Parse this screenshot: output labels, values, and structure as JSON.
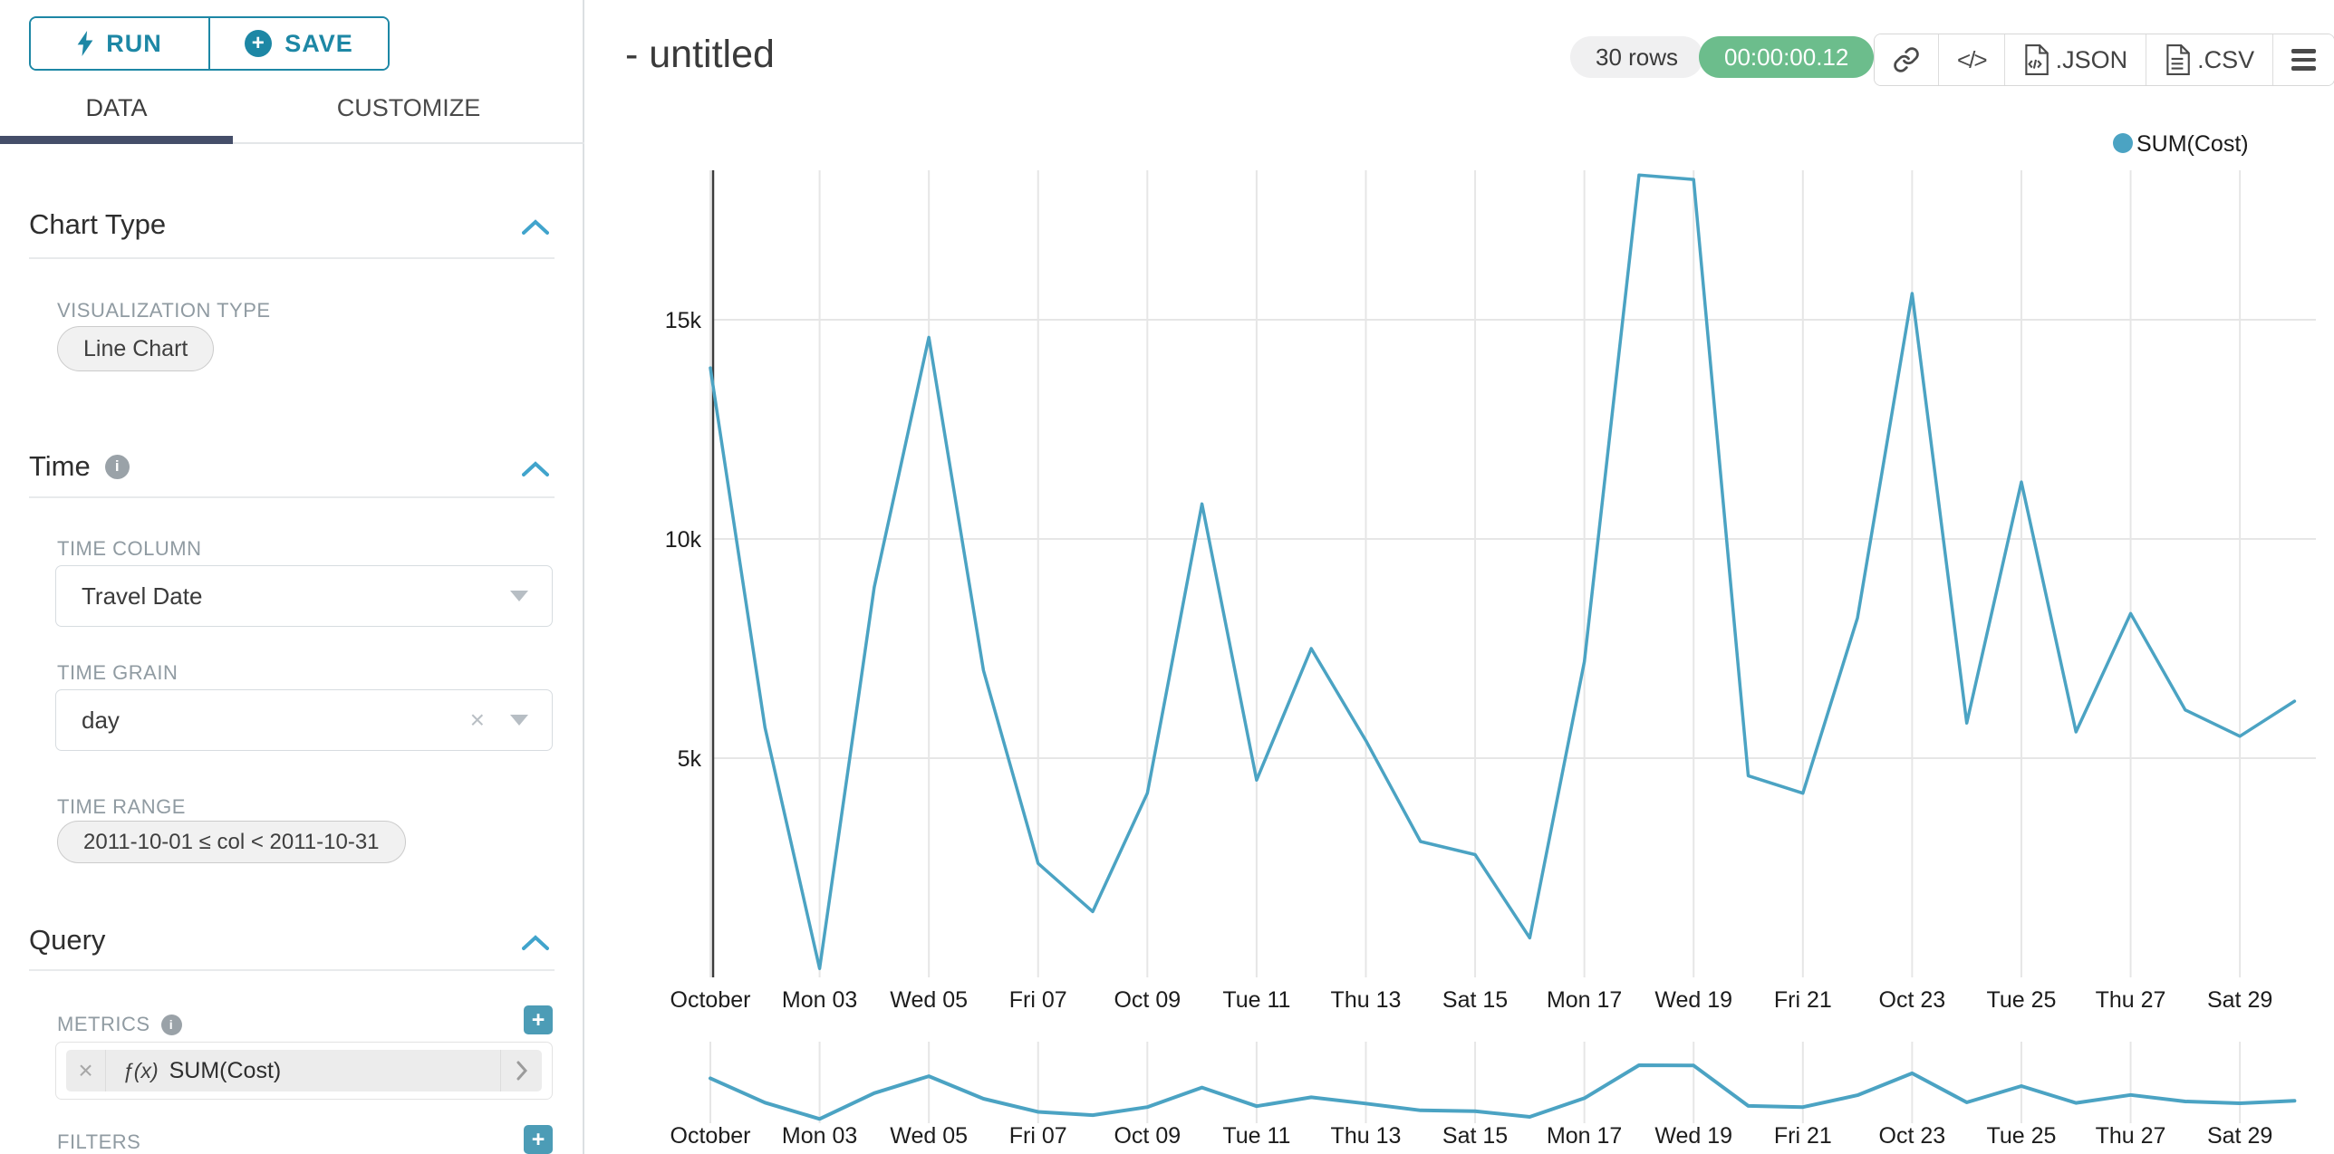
{
  "colors": {
    "teal": "#1d87a5",
    "teal_light": "#4c9cb6",
    "indigo_underline": "#454e69",
    "green_badge": "#6cbd8c",
    "line": "#4BA3C3",
    "gridline": "#e6e6e6",
    "axis_line": "#3c3c3c"
  },
  "panel": {
    "run_label": "RUN",
    "save_label": "SAVE",
    "tabs": {
      "data": "DATA",
      "customize": "CUSTOMIZE"
    },
    "chart_type": {
      "title": "Chart Type",
      "viz_type_label": "VISUALIZATION TYPE",
      "viz_type_value": "Line Chart"
    },
    "time": {
      "title": "Time",
      "time_column_label": "TIME COLUMN",
      "time_column_value": "Travel Date",
      "time_grain_label": "TIME GRAIN",
      "time_grain_value": "day",
      "time_range_label": "TIME RANGE",
      "time_range_value": "2011-10-01 ≤ col < 2011-10-31"
    },
    "query": {
      "title": "Query",
      "metrics_label": "METRICS",
      "metric_fx": "ƒ(x)",
      "metric_value": "SUM(Cost)",
      "filters_label": "FILTERS"
    }
  },
  "header": {
    "title": "- untitled",
    "rows_badge": "30 rows",
    "timer_badge": "00:00:00.12",
    "export_json_label": ".JSON",
    "export_csv_label": ".CSV"
  },
  "chart_data": {
    "type": "line",
    "title": "",
    "legend": {
      "label": "SUM(Cost)",
      "position": "top-right"
    },
    "grid": true,
    "x_label": "",
    "y_label": "",
    "ylim": [
      0,
      18410
    ],
    "y_ticks": [
      {
        "label": "5k",
        "value": 5000
      },
      {
        "label": "10k",
        "value": 10000
      },
      {
        "label": "15k",
        "value": 15000
      }
    ],
    "x_tick_labels": [
      "October",
      "Mon 03",
      "Wed 05",
      "Fri 07",
      "Oct 09",
      "Tue 11",
      "Thu 13",
      "Sat 15",
      "Mon 17",
      "Wed 19",
      "Fri 21",
      "Oct 23",
      "Tue 25",
      "Thu 27",
      "Sat 29"
    ],
    "categories": [
      "2011-10-01",
      "2011-10-02",
      "2011-10-03",
      "2011-10-04",
      "2011-10-05",
      "2011-10-06",
      "2011-10-07",
      "2011-10-08",
      "2011-10-09",
      "2011-10-10",
      "2011-10-11",
      "2011-10-12",
      "2011-10-13",
      "2011-10-14",
      "2011-10-15",
      "2011-10-16",
      "2011-10-17",
      "2011-10-18",
      "2011-10-19",
      "2011-10-20",
      "2011-10-21",
      "2011-10-22",
      "2011-10-23",
      "2011-10-24",
      "2011-10-25",
      "2011-10-26",
      "2011-10-27",
      "2011-10-28",
      "2011-10-29",
      "2011-10-30"
    ],
    "series": [
      {
        "name": "SUM(Cost)",
        "color": "#4BA3C3",
        "values": [
          13900,
          5700,
          200,
          8900,
          14600,
          7000,
          2600,
          1500,
          4200,
          10800,
          4500,
          7500,
          5400,
          3100,
          2800,
          900,
          7200,
          18300,
          18200,
          4600,
          4200,
          8200,
          15600,
          5800,
          11300,
          5600,
          8300,
          6100,
          5500,
          6300
        ]
      }
    ],
    "has_range_selector_minichart": true
  }
}
